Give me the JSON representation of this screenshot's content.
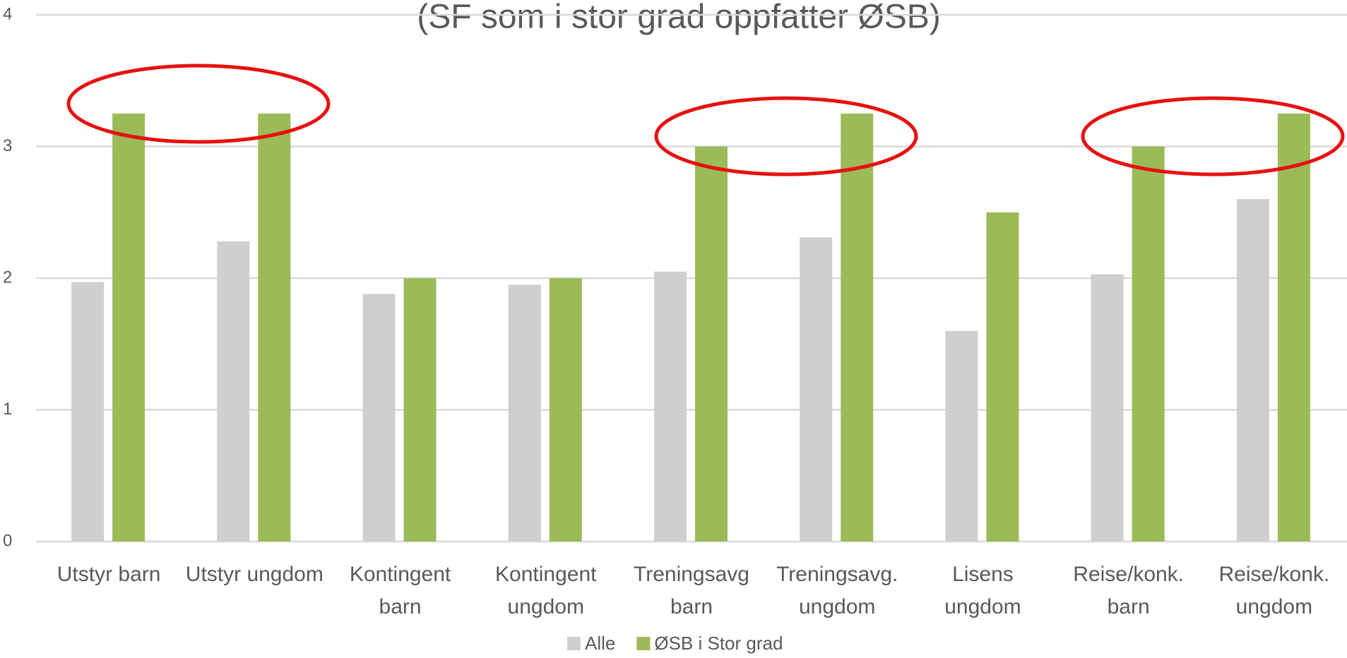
{
  "chart_data": {
    "type": "bar",
    "title": "(SF som i stor grad oppfatter ØSB)",
    "categories": [
      "Utstyr barn",
      "Utstyr ungdom",
      "Kontingent barn",
      "Kontingent ungdom",
      "Treningsavg barn",
      "Treningsavg. ungdom",
      "Lisens ungdom",
      "Reise/konk. barn",
      "Reise/konk. ungdom"
    ],
    "series": [
      {
        "name": "Alle",
        "color": "#d0cece",
        "values": [
          1.97,
          2.28,
          1.88,
          1.95,
          2.05,
          2.31,
          1.6,
          2.03,
          2.6
        ]
      },
      {
        "name": "ØSB i Stor grad",
        "color": "#9bbb59",
        "values": [
          3.25,
          3.25,
          2,
          2,
          3,
          3.25,
          2.5,
          3,
          3.25
        ]
      }
    ],
    "ylim": [
      0,
      4
    ],
    "yticks": [
      0,
      1,
      2,
      3,
      4
    ],
    "grid": true,
    "legend": "bottom"
  }
}
